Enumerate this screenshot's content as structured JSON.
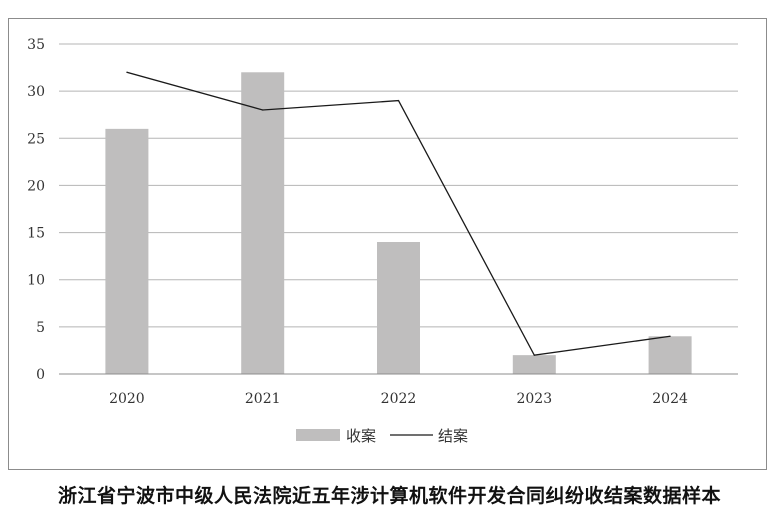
{
  "caption": "浙江省宁波市中级人民法院近五年涉计算机软件开发合同纠纷收结案数据样本",
  "chart_data": {
    "type": "bar",
    "categories": [
      "2020",
      "2021",
      "2022",
      "2023",
      "2024"
    ],
    "series": [
      {
        "name": "收案",
        "type": "bar",
        "values": [
          26,
          32,
          14,
          2,
          4
        ],
        "color": "#bfbebe"
      },
      {
        "name": "结案",
        "type": "line",
        "values": [
          32,
          28,
          29,
          2,
          4
        ],
        "color": "#1a1a1a"
      }
    ],
    "ylim": [
      0,
      35
    ],
    "yticks": [
      0,
      5,
      10,
      15,
      20,
      25,
      30,
      35
    ],
    "grid": true,
    "legend_position": "bottom-center"
  }
}
